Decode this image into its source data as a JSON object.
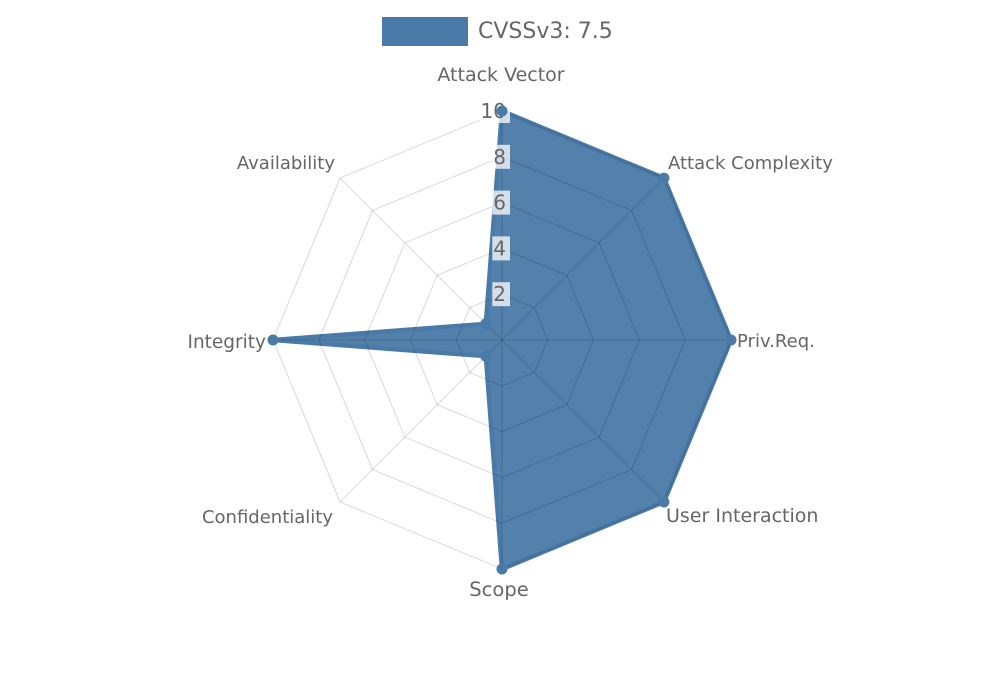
{
  "legend": {
    "label": "CVSSv3: 7.5"
  },
  "chart_data": {
    "type": "radar",
    "title": "CVSSv3: 7.5",
    "categories": [
      "Attack Vector",
      "Attack Complexity",
      "Priv.Req.",
      "User Interaction",
      "Scope",
      "Confidentiality",
      "Integrity",
      "Availability"
    ],
    "series": [
      {
        "name": "CVSSv3: 7.5",
        "values": [
          10,
          10,
          10,
          10,
          10,
          1,
          10,
          1
        ],
        "color": "#4a7aa8"
      }
    ],
    "scale": {
      "min": 0,
      "max": 10,
      "tick_labels": [
        "2",
        "4",
        "6",
        "8",
        "10"
      ],
      "grid": "spider-web"
    },
    "style": {
      "series_color": "#4a7aa8",
      "grid_color": "rgba(0,0,0,0.15)",
      "tick_backdrop_color": "rgba(255,255,255,0.75)",
      "text_color": "#666666"
    },
    "legend_position": "top"
  }
}
